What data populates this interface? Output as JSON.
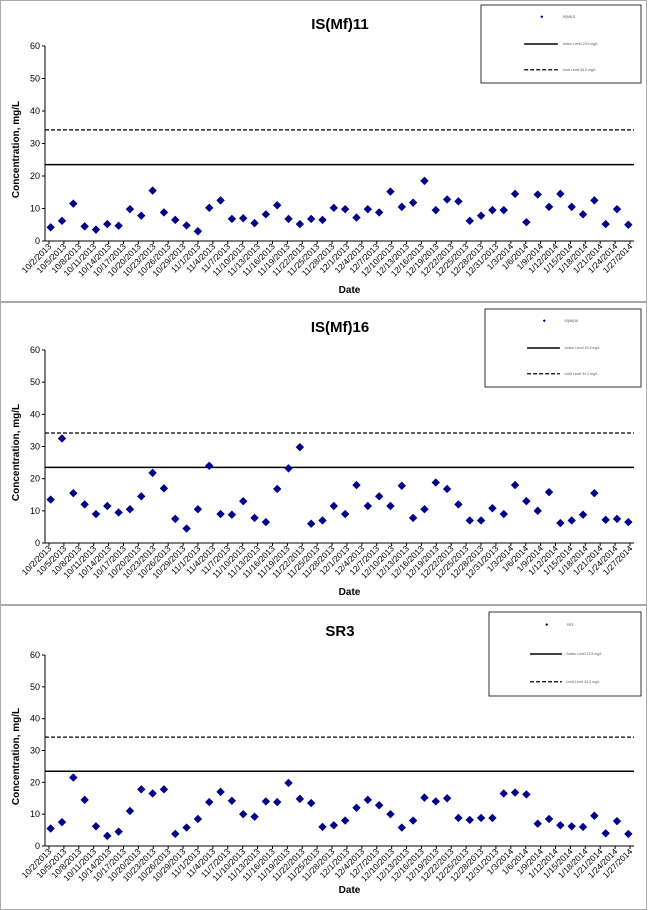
{
  "colors": {
    "marker": "#00008b",
    "line": "#000000",
    "frame": "#555555"
  },
  "chart_data": [
    {
      "type": "scatter",
      "title": "IS(Mf)11",
      "xlabel": "Date",
      "ylabel": "Concentration, mg/L",
      "ylim": [
        0,
        60
      ],
      "yticks": [
        0,
        10,
        20,
        30,
        40,
        50,
        60
      ],
      "x_tick_labels": [
        "10/2/2013",
        "10/5/2013",
        "10/8/2013",
        "10/11/2013",
        "10/14/2013",
        "10/17/2013",
        "10/20/2013",
        "10/23/2013",
        "10/26/2013",
        "10/29/2013",
        "11/1/2013",
        "11/4/2013",
        "11/7/2013",
        "11/10/2013",
        "11/13/2013",
        "11/16/2013",
        "11/19/2013",
        "11/22/2013",
        "11/25/2013",
        "11/28/2013",
        "12/1/2013",
        "12/4/2013",
        "12/7/2013",
        "12/10/2013",
        "12/13/2013",
        "12/16/2013",
        "12/19/2013",
        "12/22/2013",
        "12/25/2013",
        "12/28/2013",
        "12/31/2013",
        "1/3/2014",
        "1/6/2014",
        "1/9/2014",
        "1/12/2014",
        "1/15/2014",
        "1/18/2014",
        "1/21/2014",
        "1/24/2014",
        "1/27/2014"
      ],
      "series": [
        {
          "values": [
            4.2,
            6.2,
            11.5,
            4.5,
            3.5,
            5.2,
            4.7,
            9.8,
            7.8,
            15.5,
            8.8,
            6.5,
            4.8,
            3,
            10.2,
            12.5,
            6.8,
            7,
            5.5,
            8.2,
            11,
            6.8,
            5.2,
            6.8,
            6.5,
            10.2,
            9.8,
            7.2,
            9.8,
            8.8,
            15.2,
            10.5,
            11.8,
            18.5,
            9.5,
            12.8,
            12.2,
            6.2,
            7.8,
            9.5,
            9.5,
            14.5,
            5.8,
            14.3,
            10.5,
            14.5,
            10.5,
            8.2,
            12.5,
            5.2,
            9.8,
            5
          ]
        },
        {
          "values": [
            23.5
          ]
        },
        {
          "values": [
            34.2
          ]
        }
      ],
      "legend_labels": [
        "IS(Mf)11",
        "Action Level 23.5 mg/L",
        "Limit Level 34.2 mg/L"
      ],
      "legend_position": "top-right",
      "grid": false
    },
    {
      "type": "scatter",
      "title": "IS(Mf)16",
      "xlabel": "Date",
      "ylabel": "Concentration, mg/L",
      "ylim": [
        0,
        60
      ],
      "yticks": [
        0,
        10,
        20,
        30,
        40,
        50,
        60
      ],
      "x_tick_labels": [
        "10/2/2013",
        "10/5/2013",
        "10/8/2013",
        "10/11/2013",
        "10/14/2013",
        "10/17/2013",
        "10/20/2013",
        "10/23/2013",
        "10/26/2013",
        "10/29/2013",
        "11/1/2013",
        "11/4/2013",
        "11/7/2013",
        "11/10/2013",
        "11/13/2013",
        "11/16/2013",
        "11/19/2013",
        "11/22/2013",
        "11/25/2013",
        "11/28/2013",
        "12/1/2013",
        "12/4/2013",
        "12/7/2013",
        "12/10/2013",
        "12/13/2013",
        "12/16/2013",
        "12/19/2013",
        "12/22/2013",
        "12/25/2013",
        "12/28/2013",
        "12/31/2013",
        "1/3/2014",
        "1/6/2014",
        "1/9/2014",
        "1/12/2014",
        "1/15/2014",
        "1/18/2014",
        "1/21/2014",
        "1/24/2014",
        "1/27/2014"
      ],
      "series": [
        {
          "values": [
            13.5,
            32.5,
            15.5,
            12,
            9,
            11.5,
            9.5,
            10.5,
            14.5,
            21.8,
            17,
            7.5,
            4.5,
            10.5,
            24,
            9,
            8.8,
            13,
            7.8,
            6.5,
            16.8,
            23.2,
            29.8,
            6,
            7,
            11.5,
            9,
            18,
            11.5,
            14.5,
            11.5,
            17.8,
            7.8,
            10.5,
            18.8,
            16.8,
            12,
            7,
            7,
            10.8,
            9,
            18,
            13,
            10,
            15.8,
            6.2,
            7,
            8.8,
            15.5,
            7.2,
            7.5,
            6.5
          ]
        },
        {
          "values": [
            23.5
          ]
        },
        {
          "values": [
            34.2
          ]
        }
      ],
      "legend_labels": [
        "IS(Mf)16",
        "Action Level 23.5 mg/L",
        "Limit Level 34.2 mg/L"
      ],
      "legend_position": "top-right",
      "grid": false
    },
    {
      "type": "scatter",
      "title": "SR3",
      "xlabel": "Date",
      "ylabel": "Concentration, mg/L",
      "ylim": [
        0,
        60
      ],
      "yticks": [
        0,
        10,
        20,
        30,
        40,
        50,
        60
      ],
      "x_tick_labels": [
        "10/2/2013",
        "10/5/2013",
        "10/8/2013",
        "10/11/2013",
        "10/14/2013",
        "10/17/2013",
        "10/20/2013",
        "10/23/2013",
        "10/26/2013",
        "10/29/2013",
        "11/1/2013",
        "11/4/2013",
        "11/7/2013",
        "11/10/2013",
        "11/13/2013",
        "11/16/2013",
        "11/19/2013",
        "11/22/2013",
        "11/25/2013",
        "11/28/2013",
        "12/1/2013",
        "12/4/2013",
        "12/7/2013",
        "12/10/2013",
        "12/13/2013",
        "12/16/2013",
        "12/19/2013",
        "12/22/2013",
        "12/25/2013",
        "12/28/2013",
        "12/31/2013",
        "1/3/2014",
        "1/6/2014",
        "1/9/2014",
        "1/12/2014",
        "1/15/2014",
        "1/18/2014",
        "1/21/2014",
        "1/24/2014",
        "1/27/2014"
      ],
      "series": [
        {
          "values": [
            5.5,
            7.5,
            21.5,
            14.5,
            6.2,
            3.2,
            4.5,
            11,
            17.8,
            16.5,
            17.8,
            3.8,
            5.8,
            8.5,
            13.8,
            17,
            14.2,
            10,
            9.2,
            14,
            13.8,
            19.8,
            14.8,
            13.5,
            6,
            6.5,
            8,
            12,
            14.5,
            12.8,
            10,
            5.8,
            8,
            15.2,
            14,
            15,
            8.8,
            8.2,
            8.8,
            8.8,
            16.5,
            16.8,
            16.2,
            7,
            8.5,
            6.5,
            6.2,
            6,
            9.5,
            4,
            7.8,
            3.8
          ]
        },
        {
          "values": [
            23.5
          ]
        },
        {
          "values": [
            34.2
          ]
        }
      ],
      "legend_labels": [
        "SR3",
        "Action Level 23.5 mg/L",
        "Limit Level 34.2 mg/L"
      ],
      "legend_position": "top-right",
      "grid": false
    }
  ]
}
